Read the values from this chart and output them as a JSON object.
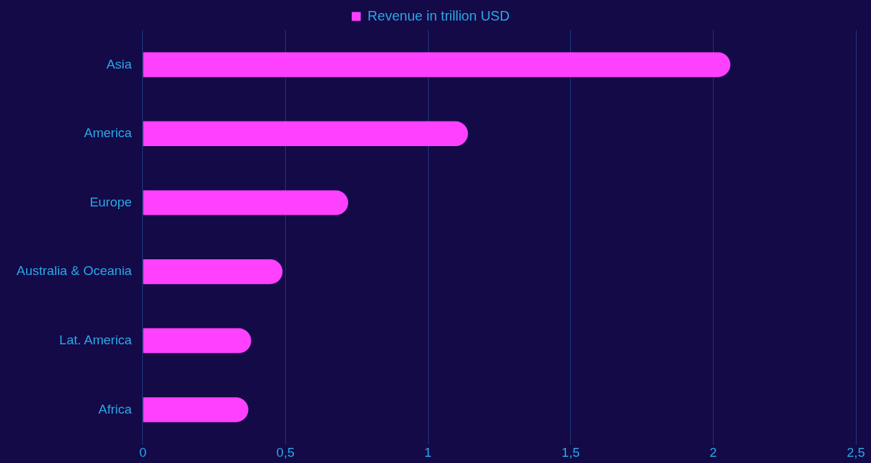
{
  "chart_data": {
    "type": "bar",
    "orientation": "horizontal",
    "categories": [
      "Asia",
      "America",
      "Europe",
      "Australia & Oceania",
      "Lat. America",
      "Africa"
    ],
    "series": [
      {
        "name": "Revenue in trillion USD",
        "color": "#ff40ff",
        "values": [
          2.06,
          1.14,
          0.72,
          0.49,
          0.38,
          0.37
        ]
      }
    ],
    "xlim": [
      0,
      2.5
    ],
    "xticks": [
      0,
      {
        "value": 0.5,
        "label": "0,5"
      },
      1,
      {
        "value": 1.5,
        "label": "1,5"
      },
      2,
      {
        "value": 2.5,
        "label": "2,5"
      }
    ],
    "grid": "x",
    "legend": "top"
  }
}
